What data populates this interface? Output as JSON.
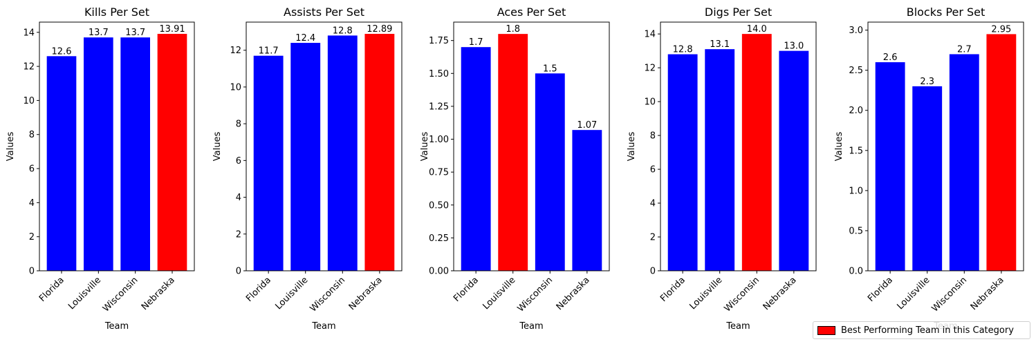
{
  "legend": {
    "label": "Best Performing Team in this Category",
    "color": "#ff0000"
  },
  "colors": {
    "default": "#0000ff",
    "best": "#ff0000"
  },
  "chart_data": [
    {
      "type": "bar",
      "title": "Kills Per Set",
      "xlabel": "Team",
      "ylabel": "Values",
      "categories": [
        "Florida",
        "Louisville",
        "Wisconsin",
        "Nebraska"
      ],
      "values": [
        12.6,
        13.7,
        13.7,
        13.91
      ],
      "value_labels": [
        "12.6",
        "13.7",
        "13.7",
        "13.91"
      ],
      "best_index": 3,
      "ylim": [
        0,
        14.6
      ],
      "yticks": [
        0,
        2,
        4,
        6,
        8,
        10,
        12,
        14
      ],
      "ytick_labels": [
        "0",
        "2",
        "4",
        "6",
        "8",
        "10",
        "12",
        "14"
      ]
    },
    {
      "type": "bar",
      "title": "Assists Per Set",
      "xlabel": "Team",
      "ylabel": "Values",
      "categories": [
        "Florida",
        "Louisville",
        "Wisconsin",
        "Nebraska"
      ],
      "values": [
        11.7,
        12.4,
        12.8,
        12.89
      ],
      "value_labels": [
        "11.7",
        "12.4",
        "12.8",
        "12.89"
      ],
      "best_index": 3,
      "ylim": [
        0,
        13.53
      ],
      "yticks": [
        0,
        2,
        4,
        6,
        8,
        10,
        12
      ],
      "ytick_labels": [
        "0",
        "2",
        "4",
        "6",
        "8",
        "10",
        "12"
      ]
    },
    {
      "type": "bar",
      "title": "Aces Per Set",
      "xlabel": "Team",
      "ylabel": "Values",
      "categories": [
        "Florida",
        "Louisville",
        "Wisconsin",
        "Nebraska"
      ],
      "values": [
        1.7,
        1.8,
        1.5,
        1.07
      ],
      "value_labels": [
        "1.7",
        "1.8",
        "1.5",
        "1.07"
      ],
      "best_index": 1,
      "ylim": [
        0,
        1.89
      ],
      "yticks": [
        0,
        0.25,
        0.5,
        0.75,
        1.0,
        1.25,
        1.5,
        1.75
      ],
      "ytick_labels": [
        "0.00",
        "0.25",
        "0.50",
        "0.75",
        "1.00",
        "1.25",
        "1.50",
        "1.75"
      ]
    },
    {
      "type": "bar",
      "title": "Digs Per Set",
      "xlabel": "Team",
      "ylabel": "Values",
      "categories": [
        "Florida",
        "Louisville",
        "Wisconsin",
        "Nebraska"
      ],
      "values": [
        12.8,
        13.1,
        14.0,
        13.0
      ],
      "value_labels": [
        "12.8",
        "13.1",
        "14.0",
        "13.0"
      ],
      "best_index": 2,
      "ylim": [
        0,
        14.7
      ],
      "yticks": [
        0,
        2,
        4,
        6,
        8,
        10,
        12,
        14
      ],
      "ytick_labels": [
        "0",
        "2",
        "4",
        "6",
        "8",
        "10",
        "12",
        "14"
      ]
    },
    {
      "type": "bar",
      "title": "Blocks Per Set",
      "xlabel": "Team",
      "ylabel": "Values",
      "categories": [
        "Florida",
        "Louisville",
        "Wisconsin",
        "Nebraska"
      ],
      "values": [
        2.6,
        2.3,
        2.7,
        2.95
      ],
      "value_labels": [
        "2.6",
        "2.3",
        "2.7",
        "2.95"
      ],
      "best_index": 3,
      "ylim": [
        0,
        3.1
      ],
      "yticks": [
        0,
        0.5,
        1.0,
        1.5,
        2.0,
        2.5,
        3.0
      ],
      "ytick_labels": [
        "0.0",
        "0.5",
        "1.0",
        "1.5",
        "2.0",
        "2.5",
        "3.0"
      ]
    }
  ]
}
